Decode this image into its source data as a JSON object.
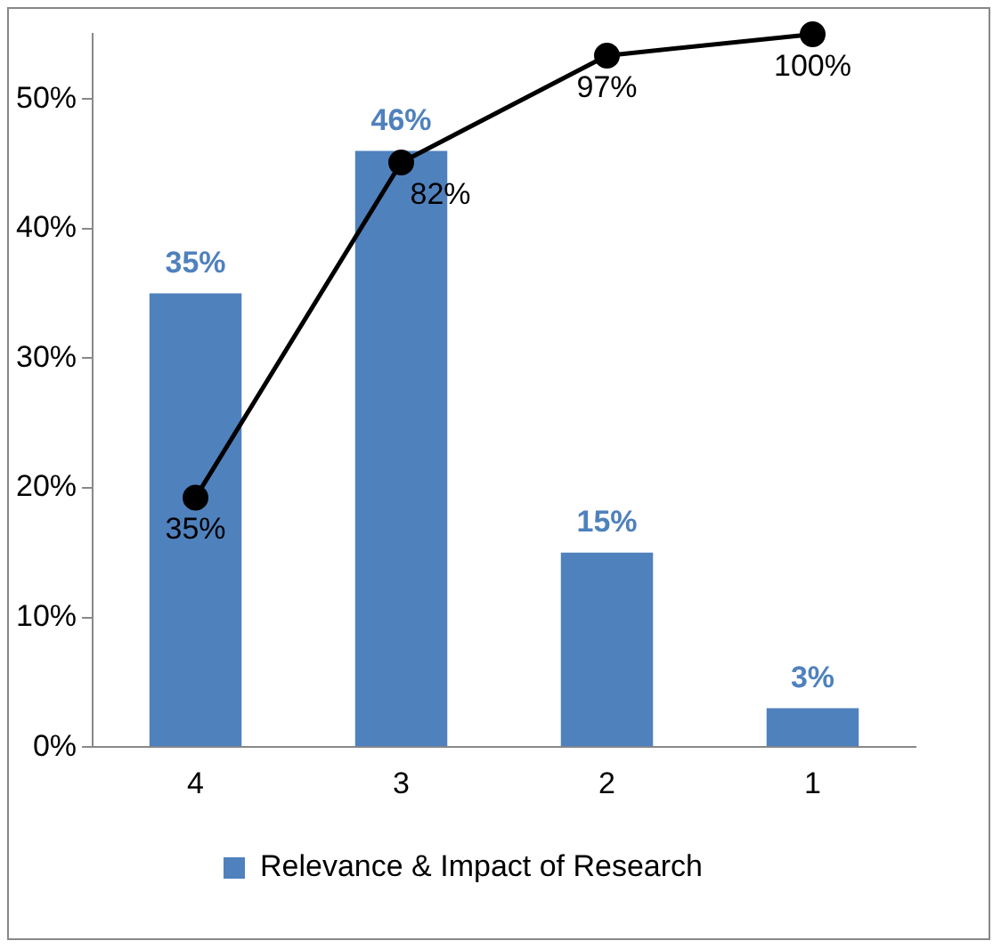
{
  "chart_data": {
    "type": "bar",
    "categories": [
      "4",
      "3",
      "2",
      "1"
    ],
    "series": [
      {
        "name": "Relevance & Impact of Research",
        "color": "#4f81bd",
        "values": [
          35,
          46,
          15,
          3
        ],
        "value_labels": [
          "35%",
          "46%",
          "15%",
          "3%"
        ]
      },
      {
        "type": "line",
        "axis": "y2",
        "color": "#000000",
        "values": [
          35,
          82,
          97,
          100
        ],
        "value_labels": [
          "35%",
          "82%",
          "97%",
          "100%"
        ]
      }
    ],
    "ylim": [
      0,
      55
    ],
    "yticks": [
      {
        "value": 0,
        "label": "0%"
      },
      {
        "value": 10,
        "label": "10%"
      },
      {
        "value": 20,
        "label": "20%"
      },
      {
        "value": 30,
        "label": "30%"
      },
      {
        "value": 40,
        "label": "40%"
      },
      {
        "value": 50,
        "label": "50%"
      }
    ],
    "marker": "circle",
    "line_style": "solid",
    "grid": false,
    "legend": "bottom"
  }
}
